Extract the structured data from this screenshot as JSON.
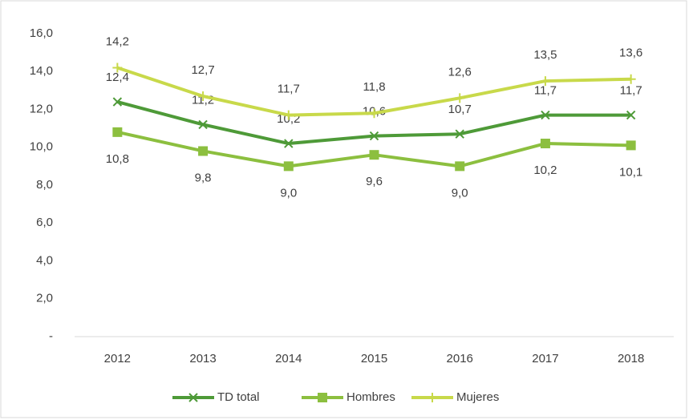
{
  "chart_data": {
    "type": "line",
    "categories": [
      "2012",
      "2013",
      "2014",
      "2015",
      "2016",
      "2017",
      "2018"
    ],
    "series": [
      {
        "name": "TD total",
        "color": "#4e9a38",
        "marker": "x",
        "values": [
          12.4,
          11.2,
          10.2,
          10.6,
          10.7,
          11.7,
          11.7
        ],
        "value_labels": [
          "12,4",
          "11,2",
          "10,2",
          "10,6",
          "10,7",
          "11,7",
          "11,7"
        ]
      },
      {
        "name": "Hombres",
        "color": "#8cbf3f",
        "marker": "square",
        "values": [
          10.8,
          9.8,
          9.0,
          9.6,
          9.0,
          10.2,
          10.1
        ],
        "value_labels": [
          "10,8",
          "9,8",
          "9,0",
          "9,6",
          "9,0",
          "10,2",
          "10,1"
        ]
      },
      {
        "name": "Mujeres",
        "color": "#c8d94a",
        "marker": "plus",
        "values": [
          14.2,
          12.7,
          11.7,
          11.8,
          12.6,
          13.5,
          13.6
        ],
        "value_labels": [
          "14,2",
          "12,7",
          "11,7",
          "11,8",
          "12,6",
          "13,5",
          "13,6"
        ]
      }
    ],
    "ylim": [
      0,
      16
    ],
    "yticks": [
      {
        "value": 0,
        "label": "-"
      },
      {
        "value": 2,
        "label": "2,0"
      },
      {
        "value": 4,
        "label": "4,0"
      },
      {
        "value": 6,
        "label": "6,0"
      },
      {
        "value": 8,
        "label": "8,0"
      },
      {
        "value": 10,
        "label": "10,0"
      },
      {
        "value": 12,
        "label": "12,0"
      },
      {
        "value": 14,
        "label": "14,0"
      },
      {
        "value": 16,
        "label": "16,0"
      }
    ],
    "grid": false,
    "legend": "bottom"
  }
}
